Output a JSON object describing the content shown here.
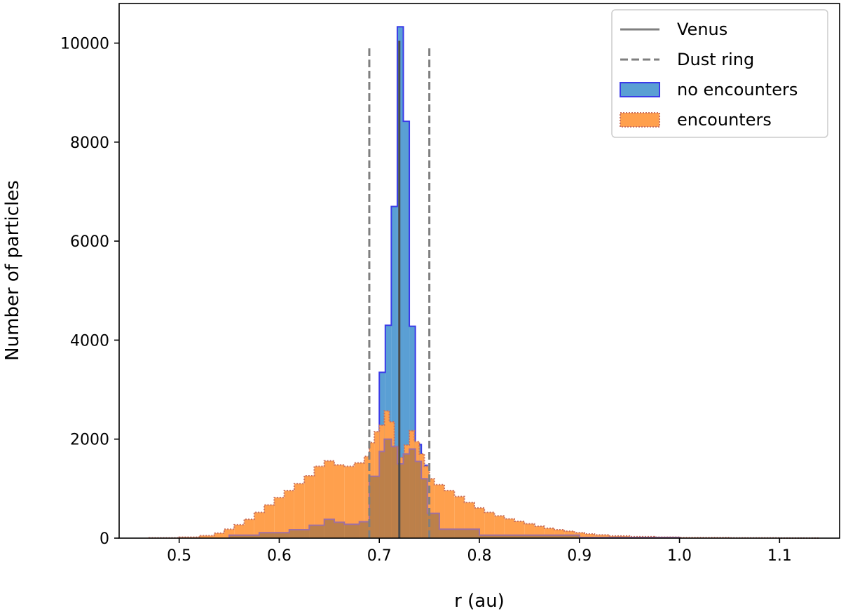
{
  "chart_data": {
    "type": "histogram",
    "xlabel": "r (au)",
    "ylabel": "Number of particles",
    "xlim": [
      0.44,
      1.16
    ],
    "ylim": [
      0,
      10800
    ],
    "xticks": [
      0.5,
      0.6,
      0.7,
      0.8,
      0.9,
      1.0,
      1.1
    ],
    "xtick_labels": [
      "0.5",
      "0.6",
      "0.7",
      "0.8",
      "0.9",
      "1.0",
      "1.1"
    ],
    "yticks": [
      0,
      2000,
      4000,
      6000,
      8000,
      10000
    ],
    "ytick_labels": [
      "0",
      "2000",
      "4000",
      "6000",
      "8000",
      "10000"
    ],
    "grid": false,
    "legend_position": "top-right",
    "vlines": [
      {
        "name": "Venus",
        "x": 0.72,
        "ymax": 10050,
        "style": "solid",
        "color": "#7f7f7f"
      },
      {
        "name": "Dust ring",
        "x": 0.69,
        "ymax": 9950,
        "style": "dashed",
        "color": "#7f7f7f"
      },
      {
        "name": "Dust ring",
        "x": 0.75,
        "ymax": 9950,
        "style": "dashed",
        "color": "#7f7f7f"
      }
    ],
    "series": [
      {
        "name": "no encounters",
        "fill": "#5a9fd4",
        "edge": "#3b3be8",
        "edge_style": "solid",
        "bins": [
          [
            0.7,
            0.706,
            3350
          ],
          [
            0.706,
            0.712,
            4300
          ],
          [
            0.712,
            0.718,
            6700
          ],
          [
            0.718,
            0.724,
            10330
          ],
          [
            0.724,
            0.73,
            8420
          ],
          [
            0.73,
            0.736,
            4280
          ],
          [
            0.736,
            0.742,
            1890
          ],
          [
            0.742,
            0.748,
            1470
          ]
        ]
      },
      {
        "name": "encounters",
        "fill": "#ffa04d",
        "edge": "#c87060",
        "edge_style": "dotted",
        "bins": [
          [
            0.47,
            0.5,
            5
          ],
          [
            0.5,
            0.52,
            20
          ],
          [
            0.52,
            0.535,
            50
          ],
          [
            0.535,
            0.545,
            100
          ],
          [
            0.545,
            0.555,
            180
          ],
          [
            0.555,
            0.565,
            270
          ],
          [
            0.565,
            0.575,
            380
          ],
          [
            0.575,
            0.585,
            520
          ],
          [
            0.585,
            0.595,
            670
          ],
          [
            0.595,
            0.605,
            820
          ],
          [
            0.605,
            0.615,
            960
          ],
          [
            0.615,
            0.625,
            1100
          ],
          [
            0.625,
            0.635,
            1260
          ],
          [
            0.635,
            0.645,
            1450
          ],
          [
            0.645,
            0.655,
            1560
          ],
          [
            0.655,
            0.665,
            1480
          ],
          [
            0.665,
            0.675,
            1450
          ],
          [
            0.675,
            0.685,
            1520
          ],
          [
            0.685,
            0.69,
            1650
          ],
          [
            0.69,
            0.695,
            1930
          ],
          [
            0.695,
            0.7,
            2150
          ],
          [
            0.7,
            0.705,
            2280
          ],
          [
            0.705,
            0.71,
            2570
          ],
          [
            0.71,
            0.715,
            2350
          ],
          [
            0.715,
            0.72,
            1850
          ],
          [
            0.72,
            0.725,
            1630
          ],
          [
            0.725,
            0.73,
            1880
          ],
          [
            0.73,
            0.735,
            2170
          ],
          [
            0.735,
            0.74,
            1950
          ],
          [
            0.74,
            0.745,
            1700
          ],
          [
            0.745,
            0.75,
            1450
          ],
          [
            0.75,
            0.755,
            1200
          ],
          [
            0.755,
            0.765,
            1080
          ],
          [
            0.765,
            0.775,
            960
          ],
          [
            0.775,
            0.785,
            840
          ],
          [
            0.785,
            0.795,
            720
          ],
          [
            0.795,
            0.805,
            610
          ],
          [
            0.805,
            0.815,
            520
          ],
          [
            0.815,
            0.825,
            450
          ],
          [
            0.825,
            0.835,
            390
          ],
          [
            0.835,
            0.845,
            340
          ],
          [
            0.845,
            0.855,
            290
          ],
          [
            0.855,
            0.865,
            240
          ],
          [
            0.865,
            0.875,
            200
          ],
          [
            0.875,
            0.885,
            170
          ],
          [
            0.885,
            0.895,
            140
          ],
          [
            0.895,
            0.905,
            110
          ],
          [
            0.905,
            0.915,
            85
          ],
          [
            0.915,
            0.93,
            65
          ],
          [
            0.93,
            0.95,
            45
          ],
          [
            0.95,
            0.975,
            30
          ],
          [
            0.975,
            1.0,
            20
          ],
          [
            1.0,
            1.05,
            10
          ],
          [
            1.05,
            1.1,
            5
          ],
          [
            1.1,
            1.14,
            2
          ]
        ]
      },
      {
        "name": "no encounters (tail)",
        "fill": "#b07a4a",
        "edge": "#a070a0",
        "edge_style": "solid",
        "bins": [
          [
            0.55,
            0.58,
            60
          ],
          [
            0.58,
            0.61,
            110
          ],
          [
            0.61,
            0.63,
            170
          ],
          [
            0.63,
            0.645,
            260
          ],
          [
            0.645,
            0.655,
            380
          ],
          [
            0.655,
            0.665,
            320
          ],
          [
            0.665,
            0.68,
            280
          ],
          [
            0.68,
            0.69,
            330
          ],
          [
            0.69,
            0.7,
            1250
          ],
          [
            0.7,
            0.705,
            1750
          ],
          [
            0.705,
            0.712,
            2000
          ],
          [
            0.712,
            0.718,
            1850
          ],
          [
            0.718,
            0.724,
            1500
          ],
          [
            0.724,
            0.73,
            1700
          ],
          [
            0.73,
            0.736,
            1800
          ],
          [
            0.736,
            0.742,
            1550
          ],
          [
            0.742,
            0.748,
            1200
          ],
          [
            0.748,
            0.76,
            500
          ],
          [
            0.76,
            0.8,
            180
          ],
          [
            0.8,
            0.9,
            60
          ],
          [
            0.9,
            1.0,
            15
          ]
        ]
      }
    ]
  },
  "legend": {
    "items": [
      {
        "label": "Venus",
        "kind": "solid-line",
        "color": "#7f7f7f"
      },
      {
        "label": "Dust ring",
        "kind": "dashed-line",
        "color": "#7f7f7f"
      },
      {
        "label": "no encounters",
        "kind": "patch",
        "fill": "#5a9fd4",
        "edge": "#3b3be8",
        "edge_style": "solid"
      },
      {
        "label": "encounters",
        "kind": "patch",
        "fill": "#ffa04d",
        "edge": "#c87060",
        "edge_style": "dotted"
      }
    ]
  }
}
